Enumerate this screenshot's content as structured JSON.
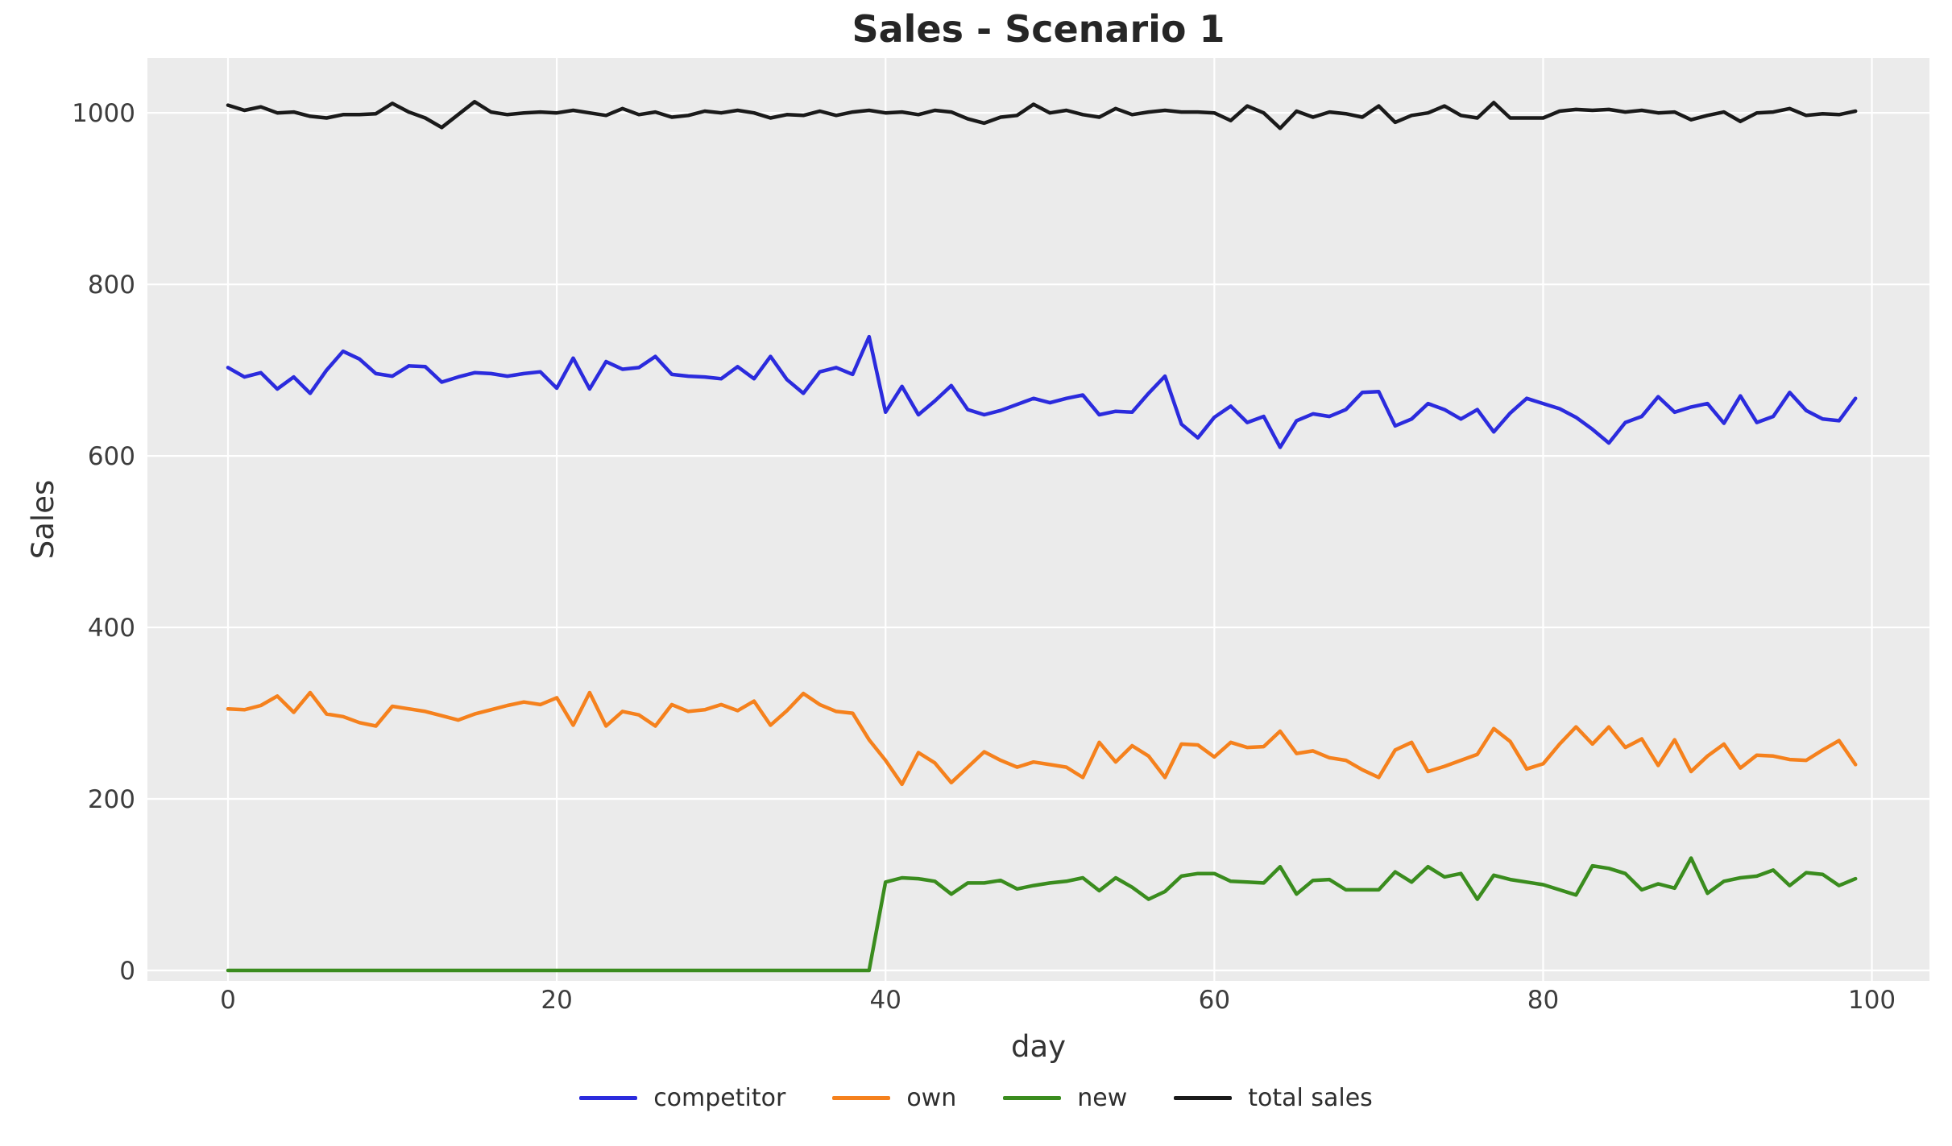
{
  "chart_data": {
    "type": "line",
    "title": "Sales - Scenario 1",
    "xlabel": "day",
    "ylabel": "Sales",
    "x_start": 0,
    "x_step": 1,
    "n_points": 100,
    "xticks": [
      0,
      20,
      40,
      60,
      80,
      100
    ],
    "yticks": [
      0,
      200,
      400,
      600,
      800,
      1000
    ],
    "xlim": [
      -4.9,
      103.5
    ],
    "ylim": [
      -12.2,
      1064
    ],
    "grid": true,
    "legend_position": "bottom-center",
    "plot_bg_color": "#ebebeb",
    "grid_color": "#ffffff",
    "title_color": "#262626",
    "tick_color": "#3d3d3d",
    "series": [
      {
        "name": "competitor",
        "color": "#2b2bdd",
        "values": [
          703,
          692,
          697,
          678,
          692,
          673,
          700,
          722,
          713,
          696,
          693,
          705,
          704,
          686,
          692,
          697,
          696,
          693,
          696,
          698,
          679,
          714,
          678,
          710,
          701,
          703,
          716,
          695,
          693,
          692,
          690,
          704,
          690,
          716,
          689,
          673,
          698,
          703,
          695,
          739,
          651,
          681,
          648,
          664,
          682,
          654,
          648,
          653,
          660,
          667,
          662,
          667,
          671,
          648,
          652,
          651,
          673,
          693,
          637,
          621,
          645,
          658,
          639,
          646,
          610,
          641,
          649,
          646,
          654,
          674,
          675,
          635,
          643,
          661,
          654,
          643,
          654,
          628,
          650,
          667,
          661,
          655,
          645,
          631,
          615,
          639,
          646,
          669,
          651,
          657,
          661,
          638,
          670,
          639,
          646,
          674,
          653,
          643,
          641,
          667
        ]
      },
      {
        "name": "own",
        "color": "#f5811d",
        "values": [
          305,
          304,
          309,
          320,
          301,
          324,
          299,
          296,
          289,
          285,
          308,
          305,
          302,
          297,
          292,
          299,
          304,
          309,
          313,
          310,
          318,
          286,
          324,
          285,
          302,
          298,
          285,
          310,
          302,
          304,
          310,
          303,
          314,
          286,
          303,
          323,
          310,
          302,
          300,
          269,
          245,
          217,
          254,
          242,
          219,
          237,
          255,
          245,
          237,
          243,
          240,
          237,
          225,
          266,
          243,
          262,
          250,
          225,
          264,
          263,
          249,
          266,
          260,
          261,
          279,
          253,
          256,
          248,
          245,
          234,
          225,
          257,
          266,
          232,
          238,
          245,
          252,
          282,
          267,
          235,
          241,
          264,
          284,
          264,
          284,
          260,
          270,
          239,
          269,
          232,
          250,
          264,
          236,
          251,
          250,
          246,
          245,
          257,
          268,
          240
        ]
      },
      {
        "name": "new",
        "color": "#3a8c1e",
        "values": [
          0,
          0,
          0,
          0,
          0,
          0,
          0,
          0,
          0,
          0,
          0,
          0,
          0,
          0,
          0,
          0,
          0,
          0,
          0,
          0,
          0,
          0,
          0,
          0,
          0,
          0,
          0,
          0,
          0,
          0,
          0,
          0,
          0,
          0,
          0,
          0,
          0,
          0,
          0,
          0,
          103,
          108,
          107,
          104,
          89,
          102,
          102,
          105,
          95,
          99,
          102,
          104,
          108,
          93,
          108,
          97,
          83,
          92,
          110,
          113,
          113,
          104,
          103,
          102,
          121,
          89,
          105,
          106,
          94,
          94,
          94,
          115,
          103,
          121,
          109,
          113,
          83,
          111,
          106,
          103,
          100,
          94,
          88,
          122,
          119,
          113,
          94,
          101,
          96,
          131,
          90,
          104,
          108,
          110,
          117,
          99,
          114,
          112,
          99,
          107
        ]
      },
      {
        "name": "total sales",
        "color": "#1a1a1a",
        "values": [
          1009,
          1003,
          1007,
          1000,
          1001,
          996,
          994,
          998,
          998,
          999,
          1011,
          1001,
          994,
          983,
          998,
          1013,
          1001,
          998,
          1000,
          1001,
          1000,
          1003,
          1000,
          997,
          1005,
          998,
          1001,
          995,
          997,
          1002,
          1000,
          1003,
          1000,
          994,
          998,
          997,
          1002,
          997,
          1001,
          1003,
          1000,
          1001,
          998,
          1003,
          1001,
          993,
          988,
          995,
          997,
          1010,
          1000,
          1003,
          998,
          995,
          1005,
          998,
          1001,
          1003,
          1001,
          1001,
          1000,
          991,
          1008,
          1000,
          982,
          1002,
          995,
          1001,
          999,
          995,
          1008,
          989,
          997,
          1000,
          1008,
          997,
          994,
          1012,
          994,
          994,
          994,
          1002,
          1004,
          1003,
          1004,
          1001,
          1003,
          1000,
          1001,
          992,
          997,
          1001,
          990,
          1000,
          1001,
          1005,
          997,
          999,
          998,
          1002
        ]
      }
    ]
  }
}
